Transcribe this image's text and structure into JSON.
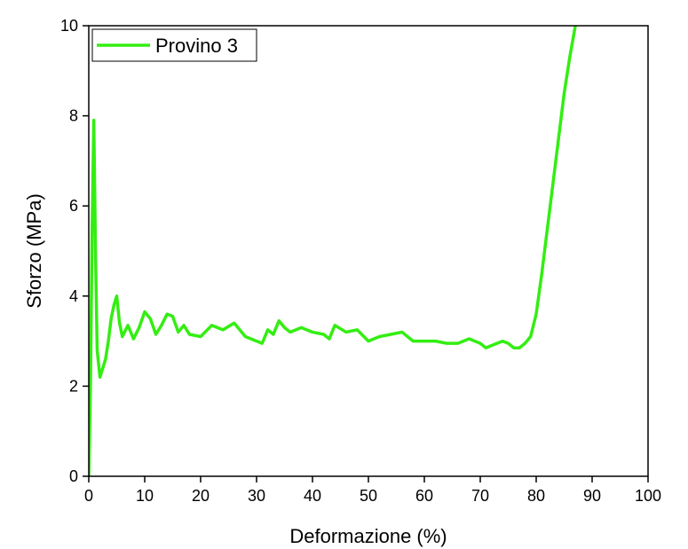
{
  "chart_data": {
    "type": "line",
    "xlabel": "Deformazione (%)",
    "ylabel": "Sforzo (MPa)",
    "xlim": [
      0,
      100
    ],
    "xticks": [
      0,
      10,
      20,
      30,
      40,
      50,
      60,
      70,
      80,
      90,
      100
    ],
    "ylim": [
      0,
      10
    ],
    "yticks": [
      0,
      2,
      4,
      6,
      8,
      10
    ],
    "legend": "upper left",
    "x": [
      0,
      0.3,
      0.6,
      0.9,
      1.2,
      1.5,
      2,
      2.5,
      3,
      3.5,
      4,
      4.5,
      5,
      5.5,
      6,
      7,
      8,
      9,
      10,
      11,
      12,
      13,
      14,
      15,
      16,
      17,
      18,
      20,
      22,
      24,
      26,
      28,
      30,
      31,
      32,
      33,
      34,
      35,
      36,
      38,
      40,
      42,
      43,
      44,
      46,
      48,
      50,
      51,
      52,
      54,
      56,
      58,
      60,
      62,
      64,
      66,
      68,
      70,
      71,
      72,
      74,
      75,
      76,
      77,
      78,
      79,
      80,
      81,
      82,
      83,
      84,
      85,
      86,
      87
    ],
    "series": [
      {
        "name": "Provino 3",
        "color": "#33ee11",
        "values": [
          0,
          2,
          5.5,
          7.9,
          5,
          2.8,
          2.2,
          2.4,
          2.6,
          3.0,
          3.5,
          3.8,
          4.0,
          3.4,
          3.1,
          3.35,
          3.05,
          3.3,
          3.65,
          3.5,
          3.15,
          3.35,
          3.6,
          3.55,
          3.2,
          3.35,
          3.15,
          3.1,
          3.35,
          3.25,
          3.4,
          3.1,
          3.0,
          2.95,
          3.25,
          3.15,
          3.45,
          3.3,
          3.2,
          3.3,
          3.2,
          3.15,
          3.05,
          3.35,
          3.2,
          3.25,
          3.0,
          3.05,
          3.1,
          3.15,
          3.2,
          3.0,
          3.0,
          3.0,
          2.95,
          2.95,
          3.05,
          2.95,
          2.85,
          2.9,
          3.0,
          2.95,
          2.85,
          2.85,
          2.95,
          3.1,
          3.6,
          4.5,
          5.5,
          6.5,
          7.5,
          8.5,
          9.3,
          10
        ]
      }
    ]
  }
}
